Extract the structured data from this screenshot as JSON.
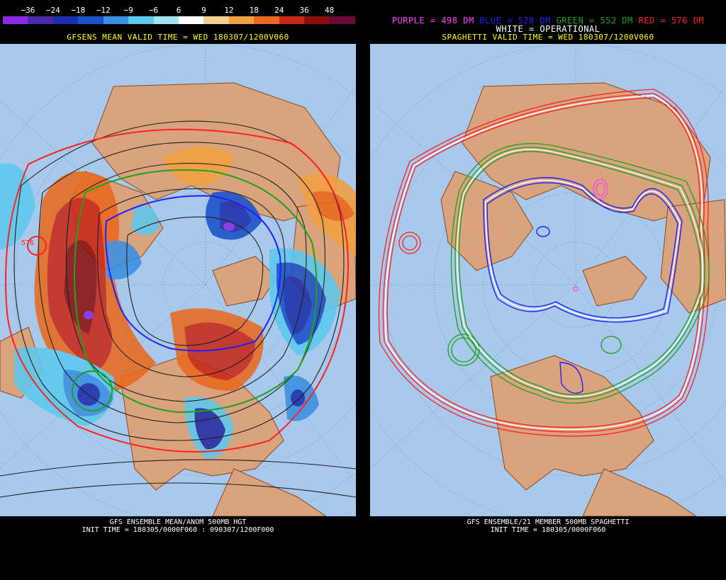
{
  "colorbar": {
    "labels": [
      "−36",
      "−24",
      "−18",
      "−12",
      "−9",
      "−6",
      "6",
      "9",
      "12",
      "18",
      "24",
      "36",
      "48"
    ],
    "colors": [
      "#8a2be2",
      "#4b2aa8",
      "#1c2ea8",
      "#1a52c8",
      "#3b8fe0",
      "#5ec8ee",
      "#9fe6f2",
      "#ffffff",
      "#f2d090",
      "#f0a040",
      "#e86a20",
      "#c82818",
      "#8a1010",
      "#6a0838"
    ]
  },
  "left": {
    "valid_time": "GFSENS MEAN VALID TIME = WED 180307/1200V060",
    "contour_label": "576",
    "footer_line1": "GFS ENSEMBLE MEAN/ANOM 500MB HGT",
    "footer_line2": "INIT TIME = 180305/0000F060 : 090307/1200F000"
  },
  "right": {
    "legend_purple": "PURPLE = 498 DM",
    "legend_blue": "BLUE = 528 DM",
    "legend_green": "GREEN = 552 DM",
    "legend_red": "RED = 576 DM",
    "legend_white": "WHITE = OPERATIONAL",
    "valid_time": "SPAGHETTI VALID TIME = WED 180307/1200V060",
    "footer_line1": "GFS ENSEMBLE/21 MEMBER 500MB SPAGHETTI",
    "footer_line2": "INIT TIME = 180305/0000F060"
  },
  "colors": {
    "ocean": "#a8c8ec",
    "land": "#d9a37e",
    "border": "#8a4a20",
    "yellow_text": "#ffff00",
    "purple": "#ff40ff",
    "blue": "#2020ff",
    "green": "#20a020",
    "red": "#ff2020"
  }
}
